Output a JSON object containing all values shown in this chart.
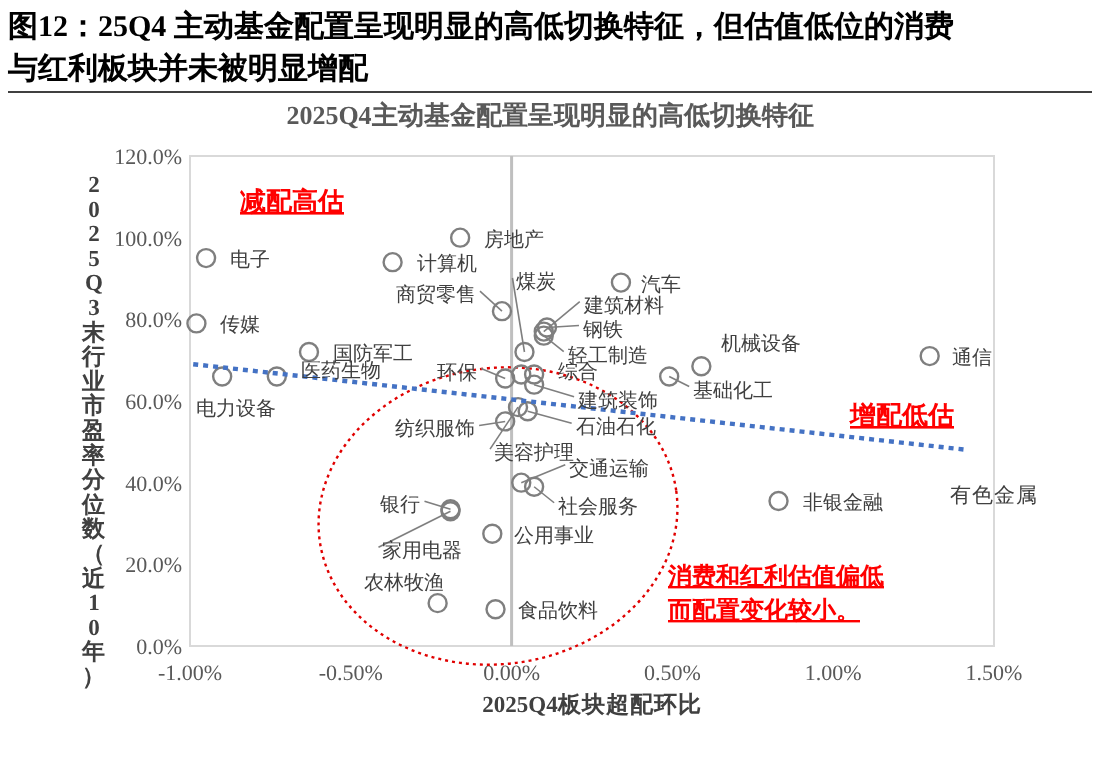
{
  "chart_data": {
    "type": "scatter",
    "title": "图12：25Q4 主动基金配置呈现明显的高低切换特征，但估值低位的消费与红利板块并未被明显增配",
    "subtitle": "2025Q4主动基金配置呈现明显的高低切换特征",
    "xlabel": "2025Q4板块超配环比",
    "ylabel": "2025Q3末行业市盈率分位数（近10年）",
    "xlim": [
      -1,
      1.5
    ],
    "xticks": [
      {
        "value": -1,
        "label": "-1.00%"
      },
      {
        "value": -0.5,
        "label": "-0.50%"
      },
      {
        "value": 0,
        "label": "0.00%"
      },
      {
        "value": 0.5,
        "label": "0.50%"
      },
      {
        "value": 1,
        "label": "1.00%"
      },
      {
        "value": 1.5,
        "label": "1.50%"
      }
    ],
    "ylim": [
      0,
      120
    ],
    "yticks": [
      {
        "value": 0,
        "label": "0.0%"
      },
      {
        "value": 20,
        "label": "20.0%"
      },
      {
        "value": 40,
        "label": "40.0%"
      },
      {
        "value": 60,
        "label": "60.0%"
      },
      {
        "value": 80,
        "label": "80.0%"
      },
      {
        "value": 100,
        "label": "100.0%"
      },
      {
        "value": 120,
        "label": "120.0%"
      }
    ],
    "grid": false,
    "series": [
      {
        "type": "scatter",
        "color": "#7f7f7f",
        "marker": "circle",
        "x": [
          -0.95,
          -0.98,
          -0.9,
          -0.73,
          -0.63,
          -0.37,
          -0.16,
          -0.03,
          0.04,
          0.1,
          0.11,
          0.1,
          0.34,
          -0.02,
          0.07,
          0.03,
          0.07,
          0.02,
          0.05,
          -0.02,
          0.59,
          0.49,
          1.3,
          0.03,
          0.07,
          -0.06,
          -0.19,
          -0.19,
          -0.23,
          -0.05,
          0.83
        ],
        "values": [
          95,
          79,
          66,
          66,
          72,
          94,
          100,
          82,
          72,
          77,
          78,
          76,
          89,
          65.5,
          66.5,
          66.5,
          64,
          58.5,
          57.5,
          55,
          68.5,
          66,
          71,
          40,
          39,
          27.5,
          33.5,
          33,
          10.5,
          9,
          35.5
        ]
      },
      {
        "type": "line",
        "color": "#4472c4",
        "line_style": "dotted",
        "x": [
          -0.99,
          1.42
        ],
        "values": [
          69,
          48
        ]
      }
    ],
    "ref_lines": [
      {
        "axis": "x",
        "value": 0,
        "color": "#bfbfbf"
      }
    ],
    "annotations": [
      {
        "text": "电子",
        "x": -0.95,
        "y": 95
      },
      {
        "text": "传媒",
        "x": -0.98,
        "y": 79
      },
      {
        "text": "电力设备",
        "x": -0.9,
        "y": 66
      },
      {
        "text": "医药生物",
        "x": -0.73,
        "y": 66
      },
      {
        "text": "国防军工",
        "x": -0.63,
        "y": 72
      },
      {
        "text": "计算机",
        "x": -0.37,
        "y": 94
      },
      {
        "text": "房地产",
        "x": -0.16,
        "y": 100
      },
      {
        "text": "商贸零售",
        "x": -0.03,
        "y": 82
      },
      {
        "text": "煤炭",
        "x": 0.04,
        "y": 72
      },
      {
        "text": "建筑材料",
        "x": 0.1,
        "y": 77
      },
      {
        "text": "钢铁",
        "x": 0.11,
        "y": 78
      },
      {
        "text": "轻工制造",
        "x": 0.1,
        "y": 76
      },
      {
        "text": "汽车",
        "x": 0.34,
        "y": 89
      },
      {
        "text": "环保",
        "x": -0.02,
        "y": 65.5
      },
      {
        "text": "综合",
        "x": 0.07,
        "y": 66.5
      },
      {
        "text": "建筑装饰",
        "x": 0.07,
        "y": 64
      },
      {
        "text": "美容护理",
        "x": 0.02,
        "y": 58.5
      },
      {
        "text": "石油石化",
        "x": 0.05,
        "y": 57.5
      },
      {
        "text": "纺织服饰",
        "x": -0.02,
        "y": 55
      },
      {
        "text": "机械设备",
        "x": 0.59,
        "y": 68.5
      },
      {
        "text": "基础化工",
        "x": 0.49,
        "y": 66
      },
      {
        "text": "通信",
        "x": 1.3,
        "y": 71
      },
      {
        "text": "交通运输",
        "x": 0.03,
        "y": 40
      },
      {
        "text": "社会服务",
        "x": 0.07,
        "y": 39
      },
      {
        "text": "公用事业",
        "x": -0.06,
        "y": 27.5
      },
      {
        "text": "银行",
        "x": -0.19,
        "y": 33.5
      },
      {
        "text": "家用电器",
        "x": -0.19,
        "y": 33
      },
      {
        "text": "农林牧渔",
        "x": -0.23,
        "y": 10.5
      },
      {
        "text": "食品饮料",
        "x": -0.05,
        "y": 9
      },
      {
        "text": "非银金融",
        "x": 0.83,
        "y": 35.5
      },
      "有色金属",
      "减配高估",
      "增配低估",
      "消费和红利估值偏低",
      "而配置变化较小。"
    ]
  }
}
